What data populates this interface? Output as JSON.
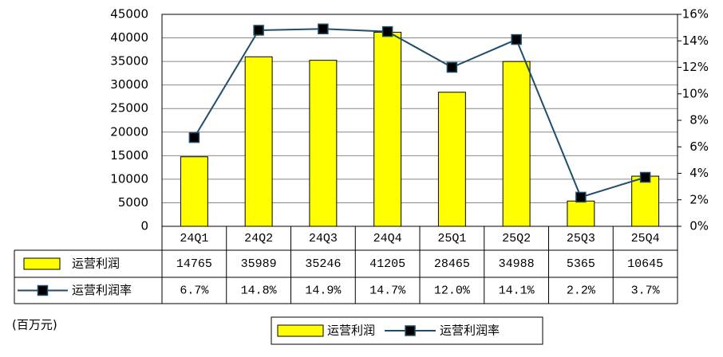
{
  "chart_data": {
    "type": "bar",
    "unit_note": "(百万元)",
    "categories": [
      "24Q1",
      "24Q2",
      "24Q3",
      "24Q4",
      "25Q1",
      "25Q2",
      "25Q3",
      "25Q4"
    ],
    "series": [
      {
        "name": "运营利润",
        "color": "#ffff00",
        "values": [
          14765,
          35989,
          35246,
          41205,
          28465,
          34988,
          5365,
          10645
        ]
      },
      {
        "name": "运营利润率",
        "type": "line",
        "axis": "y2",
        "color": "#1f4e6b",
        "values": [
          6.7,
          14.8,
          14.9,
          14.7,
          12.0,
          14.1,
          2.2,
          3.7
        ],
        "value_labels": [
          "6.7%",
          "14.8%",
          "14.9%",
          "14.7%",
          "12.0%",
          "14.1%",
          "2.2%",
          "3.7%"
        ]
      }
    ],
    "ylim": [
      0,
      45000
    ],
    "yticks": [
      0,
      5000,
      10000,
      15000,
      20000,
      25000,
      30000,
      35000,
      40000,
      45000
    ],
    "y2lim": [
      0,
      16
    ],
    "y2ticks": [
      {
        "value": 0,
        "label": "0%"
      },
      {
        "value": 2,
        "label": "2%"
      },
      {
        "value": 4,
        "label": "4%"
      },
      {
        "value": 6,
        "label": "6%"
      },
      {
        "value": 8,
        "label": "8%"
      },
      {
        "value": 10,
        "label": "10%"
      },
      {
        "value": 12,
        "label": "12%"
      },
      {
        "value": 14,
        "label": "14%"
      },
      {
        "value": 16,
        "label": "16%"
      }
    ],
    "grid": true
  }
}
